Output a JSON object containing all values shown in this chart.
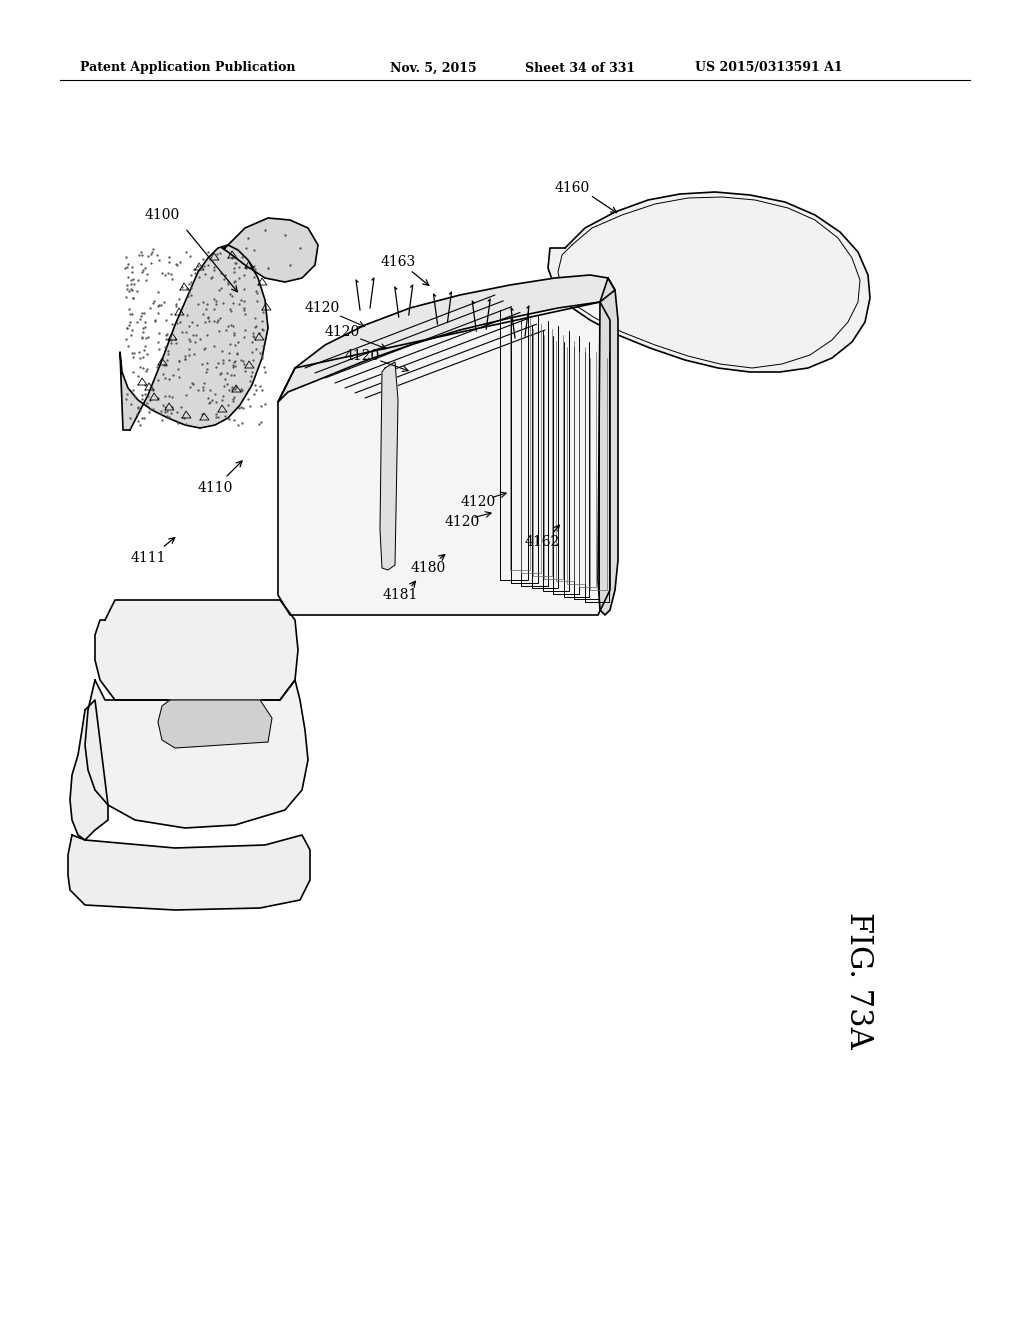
{
  "bg_color": "#ffffff",
  "header_text": "Patent Application Publication",
  "header_date": "Nov. 5, 2015",
  "header_sheet": "Sheet 34 of 331",
  "header_patent": "US 2015/0313591 A1",
  "fig_label": "FIG. 73A",
  "lw_main": 1.2,
  "lw_thin": 0.7,
  "text_color": "#000000"
}
